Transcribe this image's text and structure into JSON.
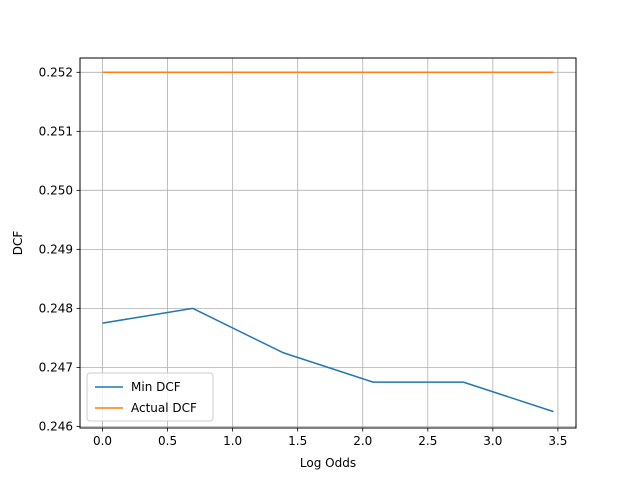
{
  "chart_data": {
    "type": "line",
    "xlabel": "Log Odds",
    "ylabel": "DCF",
    "xlim": [
      -0.173,
      3.639
    ],
    "ylim": [
      245.9725,
      252.2425
    ],
    "y_scale_factor": 1000,
    "x_ticks": [
      0.0,
      0.5,
      1.0,
      1.5,
      2.0,
      2.5,
      3.0,
      3.5
    ],
    "x_tick_labels": [
      "0.0",
      "0.5",
      "1.0",
      "1.5",
      "2.0",
      "2.5",
      "3.0",
      "3.5"
    ],
    "y_ticks": [
      246,
      247,
      248,
      249,
      250,
      251,
      252
    ],
    "y_tick_labels": [
      "0.246",
      "0.247",
      "0.248",
      "0.249",
      "0.250",
      "0.251",
      "0.252"
    ],
    "grid": true,
    "legend_position": "lower-left",
    "x": [
      0.0,
      0.693,
      1.386,
      2.079,
      2.773,
      3.466
    ],
    "series": [
      {
        "name": "Min DCF",
        "color": "#1f77b4",
        "values": [
          247.75,
          248.0,
          247.25,
          246.75,
          246.75,
          246.25
        ]
      },
      {
        "name": "Actual DCF",
        "color": "#ff7f0e",
        "values": [
          252.0,
          252.0,
          252.0,
          252.0,
          252.0,
          252.0
        ]
      }
    ]
  }
}
